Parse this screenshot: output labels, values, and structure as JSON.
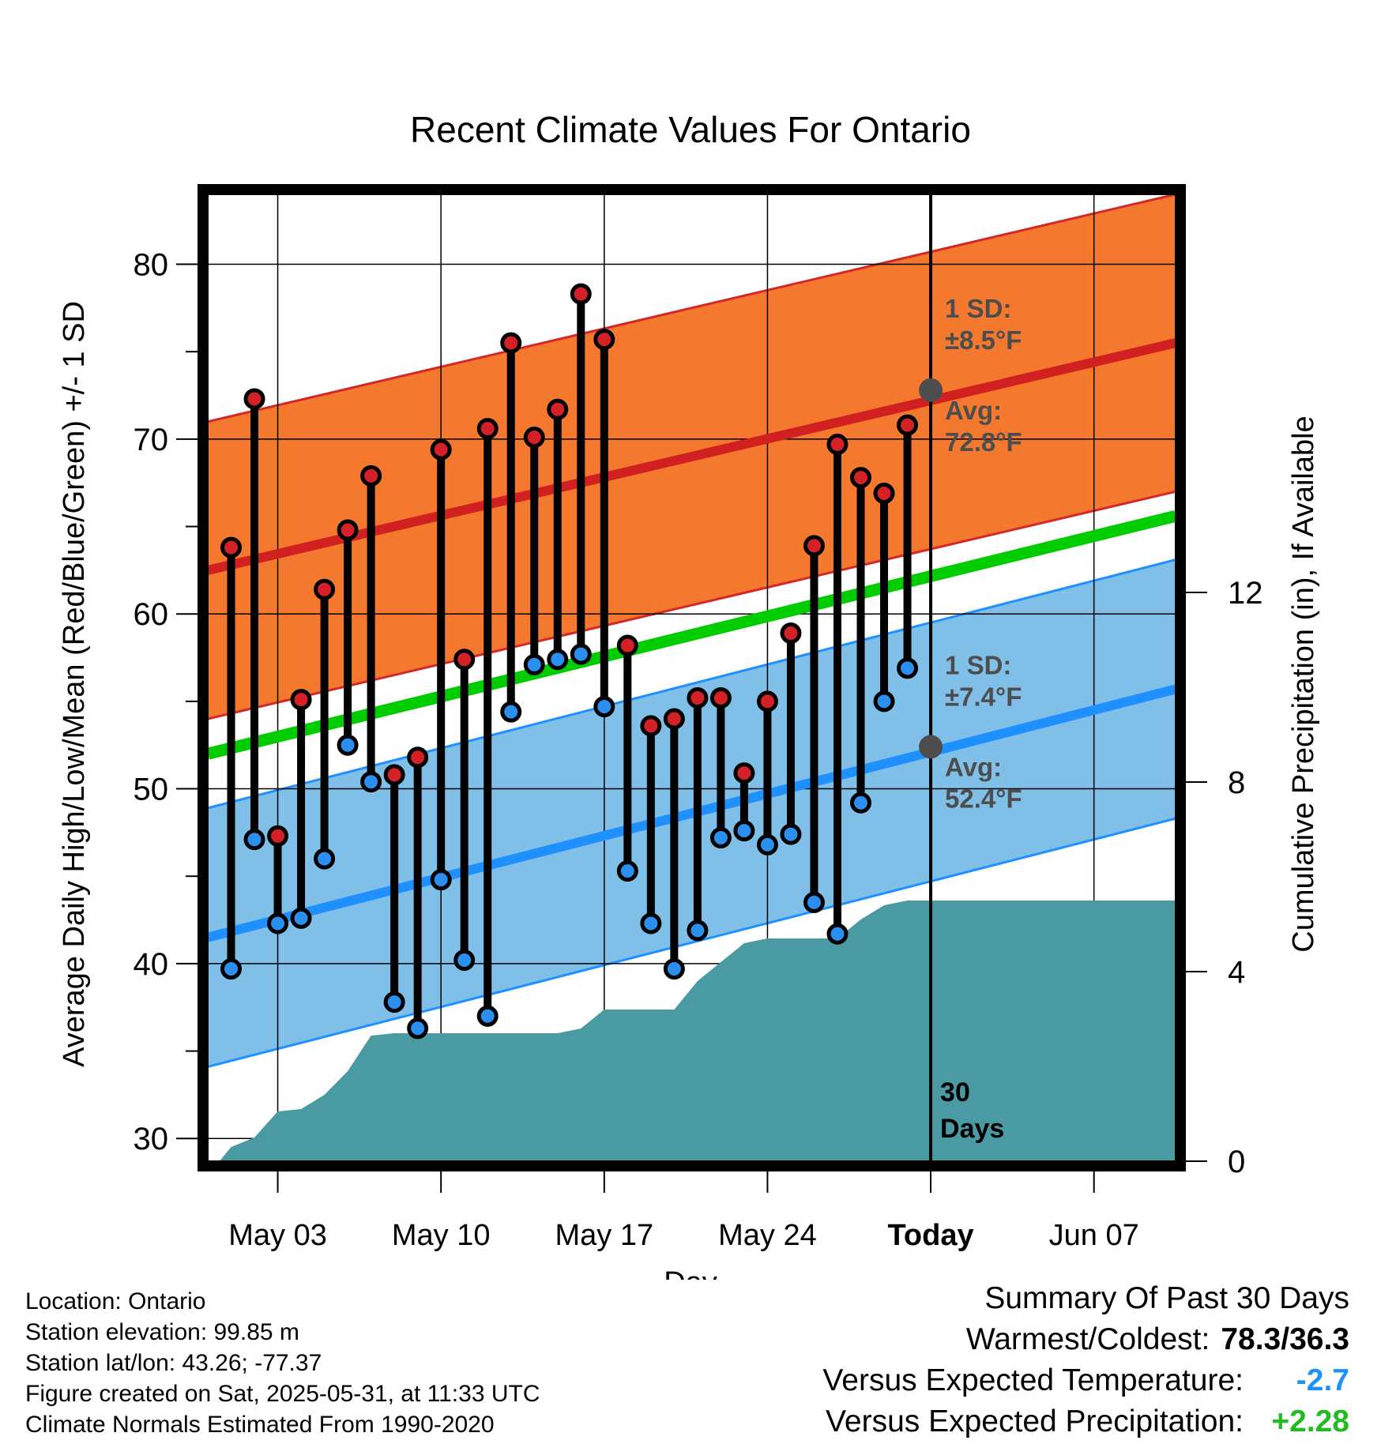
{
  "chart_data": {
    "type": "line",
    "title": "Recent Climate Values For Ontario",
    "xlabel": "Day",
    "ylabel": "Average Daily High/Low/Mean (Red/Blue/Green) +/- 1 SD",
    "y2label": "Cumulative Precipitation (in), If Available",
    "xlim": [
      0,
      41.5
    ],
    "ylim": [
      28.7,
      84
    ],
    "y2lim": [
      0,
      20.4
    ],
    "x_ticks": [
      {
        "x": 3,
        "label": "May 03"
      },
      {
        "x": 10,
        "label": "May 10"
      },
      {
        "x": 17,
        "label": "May 17"
      },
      {
        "x": 24,
        "label": "May 24"
      },
      {
        "x": 31,
        "label": "Today"
      },
      {
        "x": 38,
        "label": "Jun 07"
      }
    ],
    "y_ticks": [
      30,
      40,
      50,
      60,
      70,
      80
    ],
    "y2_ticks": [
      0,
      4,
      8,
      12
    ],
    "grid": true,
    "colors": {
      "high_band": "#f4792e",
      "high_line": "#d02020",
      "high_edge": "#d42828",
      "low_band": "#7fbfe8",
      "low_line": "#1e90ff",
      "low_edge": "#1e90ff",
      "mean_line": "#00cc00",
      "precip": "#4a9aa3",
      "dot_high": "#d42027",
      "dot_low": "#2b8ff0",
      "annotation": "#4d4d4d"
    },
    "normals": {
      "high_avg": [
        {
          "x": 0,
          "y": 62.5
        },
        {
          "x": 41.5,
          "y": 75.5
        }
      ],
      "low_avg": [
        {
          "x": 0,
          "y": 41.5
        },
        {
          "x": 41.5,
          "y": 55.7
        }
      ],
      "mean_avg": [
        {
          "x": 0,
          "y": 52
        },
        {
          "x": 41.5,
          "y": 65.6
        }
      ],
      "sd_high": 8.5,
      "sd_low": 7.4
    },
    "highs": [
      {
        "day": 1,
        "value": 63.8
      },
      {
        "day": 2,
        "value": 72.3
      },
      {
        "day": 3,
        "value": 47.3
      },
      {
        "day": 4,
        "value": 55.1
      },
      {
        "day": 5,
        "value": 61.4
      },
      {
        "day": 6,
        "value": 64.8
      },
      {
        "day": 7,
        "value": 67.9
      },
      {
        "day": 8,
        "value": 50.8
      },
      {
        "day": 9,
        "value": 51.8
      },
      {
        "day": 10,
        "value": 69.4
      },
      {
        "day": 11,
        "value": 57.4
      },
      {
        "day": 12,
        "value": 70.6
      },
      {
        "day": 13,
        "value": 75.5
      },
      {
        "day": 14,
        "value": 70.1
      },
      {
        "day": 15,
        "value": 71.7
      },
      {
        "day": 16,
        "value": 78.3
      },
      {
        "day": 17,
        "value": 75.7
      },
      {
        "day": 18,
        "value": 58.2
      },
      {
        "day": 19,
        "value": 53.6
      },
      {
        "day": 20,
        "value": 54.0
      },
      {
        "day": 21,
        "value": 55.2
      },
      {
        "day": 22,
        "value": 55.2
      },
      {
        "day": 23,
        "value": 50.9
      },
      {
        "day": 24,
        "value": 55.0
      },
      {
        "day": 25,
        "value": 58.9
      },
      {
        "day": 26,
        "value": 63.9
      },
      {
        "day": 27,
        "value": 69.7
      },
      {
        "day": 28,
        "value": 67.8
      },
      {
        "day": 29,
        "value": 66.9
      },
      {
        "day": 30,
        "value": 70.8
      }
    ],
    "lows": [
      {
        "day": 1,
        "value": 39.7
      },
      {
        "day": 2,
        "value": 47.1
      },
      {
        "day": 3,
        "value": 42.3
      },
      {
        "day": 4,
        "value": 42.6
      },
      {
        "day": 5,
        "value": 46.0
      },
      {
        "day": 6,
        "value": 52.5
      },
      {
        "day": 7,
        "value": 50.4
      },
      {
        "day": 8,
        "value": 37.8
      },
      {
        "day": 9,
        "value": 36.3
      },
      {
        "day": 10,
        "value": 44.8
      },
      {
        "day": 11,
        "value": 40.2
      },
      {
        "day": 12,
        "value": 37.0
      },
      {
        "day": 13,
        "value": 54.4
      },
      {
        "day": 14,
        "value": 57.1
      },
      {
        "day": 15,
        "value": 57.4
      },
      {
        "day": 16,
        "value": 57.7
      },
      {
        "day": 17,
        "value": 54.7
      },
      {
        "day": 18,
        "value": 45.3
      },
      {
        "day": 19,
        "value": 42.3
      },
      {
        "day": 20,
        "value": 39.7
      },
      {
        "day": 21,
        "value": 41.9
      },
      {
        "day": 22,
        "value": 47.2
      },
      {
        "day": 23,
        "value": 47.6
      },
      {
        "day": 24,
        "value": 46.8
      },
      {
        "day": 25,
        "value": 47.4
      },
      {
        "day": 26,
        "value": 43.5
      },
      {
        "day": 27,
        "value": 41.7
      },
      {
        "day": 28,
        "value": 49.2
      },
      {
        "day": 29,
        "value": 55.0
      },
      {
        "day": 30,
        "value": 56.9
      }
    ],
    "precip_cumulative": [
      {
        "x": 0.5,
        "y": 0.0
      },
      {
        "x": 1,
        "y": 0.3
      },
      {
        "x": 2,
        "y": 0.5
      },
      {
        "x": 3,
        "y": 1.05
      },
      {
        "x": 4,
        "y": 1.1
      },
      {
        "x": 5,
        "y": 1.4
      },
      {
        "x": 6,
        "y": 1.9
      },
      {
        "x": 7,
        "y": 2.65
      },
      {
        "x": 8,
        "y": 2.7
      },
      {
        "x": 9,
        "y": 2.7
      },
      {
        "x": 10,
        "y": 2.7
      },
      {
        "x": 11,
        "y": 2.7
      },
      {
        "x": 12,
        "y": 2.7
      },
      {
        "x": 13,
        "y": 2.7
      },
      {
        "x": 14,
        "y": 2.7
      },
      {
        "x": 15,
        "y": 2.7
      },
      {
        "x": 16,
        "y": 2.8
      },
      {
        "x": 17,
        "y": 3.2
      },
      {
        "x": 18,
        "y": 3.2
      },
      {
        "x": 19,
        "y": 3.2
      },
      {
        "x": 20,
        "y": 3.2
      },
      {
        "x": 21,
        "y": 3.8
      },
      {
        "x": 22,
        "y": 4.2
      },
      {
        "x": 23,
        "y": 4.6
      },
      {
        "x": 24,
        "y": 4.7
      },
      {
        "x": 25,
        "y": 4.7
      },
      {
        "x": 26,
        "y": 4.7
      },
      {
        "x": 27,
        "y": 4.7
      },
      {
        "x": 28,
        "y": 5.1
      },
      {
        "x": 29,
        "y": 5.4
      },
      {
        "x": 30,
        "y": 5.5
      },
      {
        "x": 31,
        "y": 5.5
      },
      {
        "x": 41.5,
        "y": 5.5
      }
    ],
    "today": 31,
    "annotations": {
      "high_sd_label": "1 SD:",
      "high_sd_value": "±8.5°F",
      "high_avg_label": "Avg:",
      "high_avg_value": "72.8°F",
      "high_avg": 72.8,
      "low_sd_label": "1 SD:",
      "low_sd_value": "±7.4°F",
      "low_avg_label": "Avg:",
      "low_avg_value": "52.4°F",
      "low_avg": 52.4,
      "days_line1": "30",
      "days_line2": "Days"
    }
  },
  "info": {
    "location": "Location: Ontario",
    "elevation": "Station elevation: 99.85 m",
    "latlon": "Station lat/lon: 43.26; -77.37",
    "created": "Figure created on Sat, 2025-05-31, at 11:33 UTC",
    "normals": "Climate Normals Estimated From 1990-2020"
  },
  "summary": {
    "title": "Summary Of Past 30 Days",
    "warmest_label": "Warmest/Coldest:",
    "warmest_value": "78.3/36.3",
    "temp_label": "Versus Expected Temperature:",
    "temp_value": "-2.7",
    "temp_color": "#1e90ff",
    "precip_label": "Versus Expected Precipitation:",
    "precip_value": "+2.28",
    "precip_color": "#22bb22"
  }
}
